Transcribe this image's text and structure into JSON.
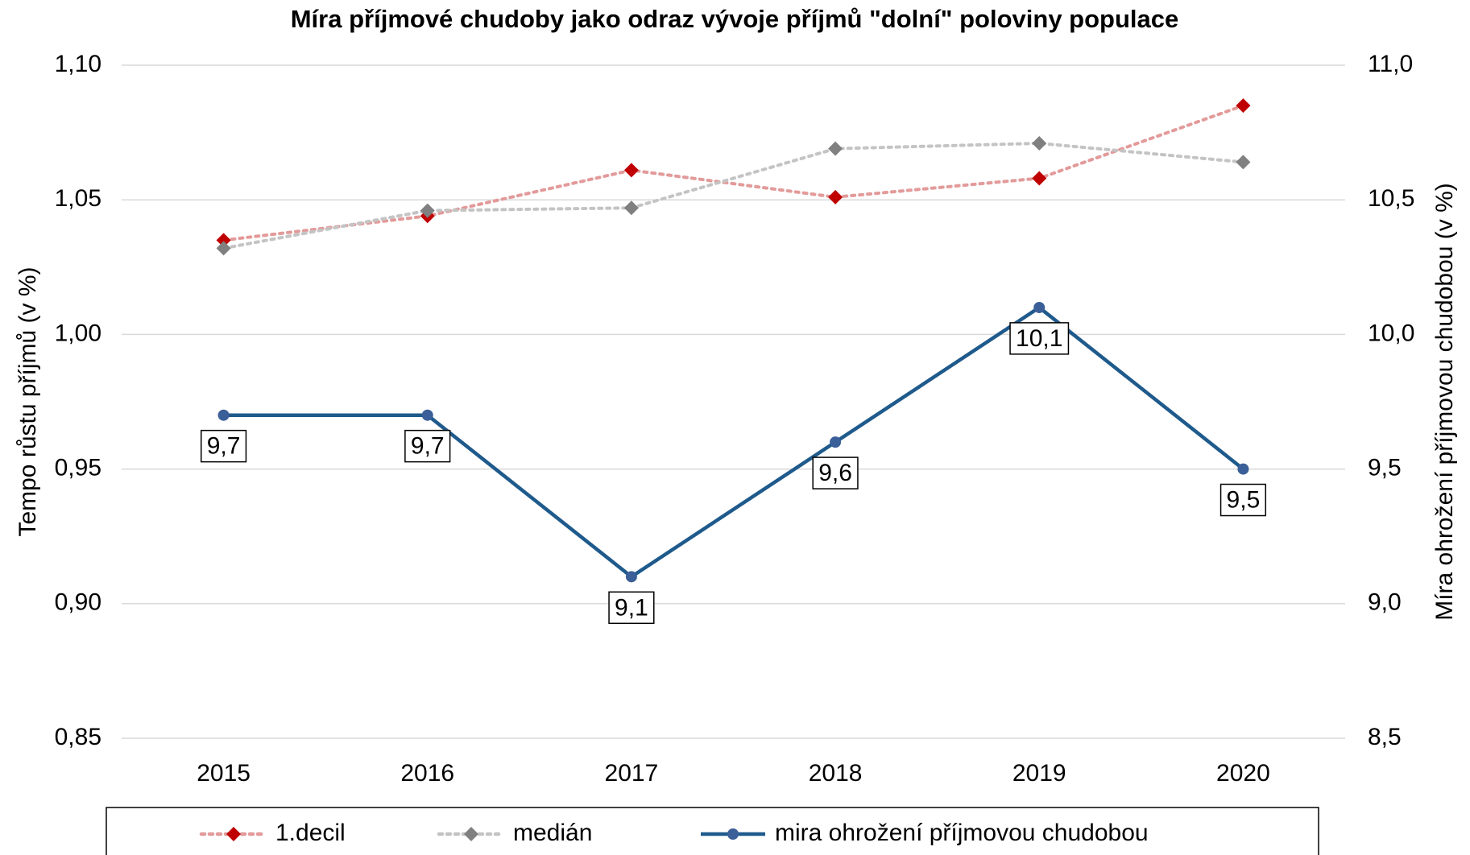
{
  "chart_data": {
    "type": "line",
    "title": "Míra příjmové chudoby jako odraz vývoje příjmů \"dolní\" poloviny populace",
    "ylabel": "Tempo růstu příjmů (v %)",
    "y2label": "Míra ohrožení příjmovou chudobou (v %)",
    "categories": [
      "2015",
      "2016",
      "2017",
      "2018",
      "2019",
      "2020"
    ],
    "ylim": [
      0.85,
      1.1
    ],
    "yticks": [
      {
        "value": 0.85,
        "label": "0,85"
      },
      {
        "value": 0.9,
        "label": "0,90"
      },
      {
        "value": 0.95,
        "label": "0,95"
      },
      {
        "value": 1.0,
        "label": "1,00"
      },
      {
        "value": 1.05,
        "label": "1,05"
      },
      {
        "value": 1.1,
        "label": "1,10"
      }
    ],
    "y2lim": [
      8.5,
      11.0
    ],
    "y2ticks": [
      {
        "value": 8.5,
        "label": "8,5"
      },
      {
        "value": 9.0,
        "label": "9,0"
      },
      {
        "value": 9.5,
        "label": "9,5"
      },
      {
        "value": 10.0,
        "label": "10,0"
      },
      {
        "value": 10.5,
        "label": "10,5"
      },
      {
        "value": 11.0,
        "label": "11,0"
      }
    ],
    "grid": true,
    "legend": "bottom",
    "series": [
      {
        "name": "1.decil",
        "color": "#c00000",
        "line_color": "#e39a9a",
        "dash": "dotted",
        "marker": "diamond",
        "values": [
          1.035,
          1.044,
          1.061,
          1.051,
          1.058,
          1.085
        ]
      },
      {
        "name": "medián",
        "color": "#808080",
        "line_color": "#c4c4c4",
        "dash": "dotted",
        "marker": "diamond",
        "values": [
          1.032,
          1.046,
          1.047,
          1.069,
          1.071,
          1.064
        ]
      },
      {
        "name": "mira ohrožení příjmovou chudobou",
        "color": "#1f5a8c",
        "line_color": "#1f5a8c",
        "dash": "solid",
        "marker": "circle",
        "axis": "y2",
        "values": [
          9.7,
          9.7,
          9.1,
          9.6,
          10.1,
          9.5
        ],
        "value_labels": [
          "9,7",
          "9,7",
          "9,1",
          "9,6",
          "10,1",
          "9,5"
        ]
      }
    ]
  }
}
